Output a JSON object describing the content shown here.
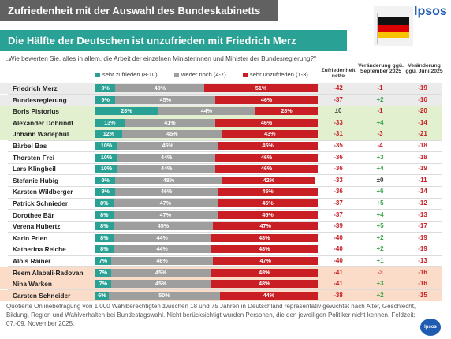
{
  "title": "Zufriedenheit mit der Auswahl des Bundeskabinetts",
  "subtitle": "Die Hälfte der Deutschen ist unzufrieden mit Friedrich Merz",
  "brand": "Ipsos",
  "question": "„Wie bewerten Sie, alles in allem, die Arbeit der einzelnen Ministerinnen und Minister der Bundesregierung?\"",
  "legend": {
    "satisfied": "sehr zufrieden (8-10)",
    "neutral": "weder noch (4-7)",
    "unsatisfied": "sehr unzufrieden (1-3)"
  },
  "columns": {
    "netto": "Zufriedenheit netto",
    "sep": "Veränderung ggü. September 2025",
    "jun": "Veränderung ggü. Juni 2025"
  },
  "colors": {
    "satisfied": "#2aa195",
    "neutral": "#9e9e9e",
    "unsatisfied": "#c81e24",
    "green_hl": "#e3f0cf",
    "peach_hl": "#fbdcc8",
    "gray_hl": "#ebebeb",
    "pos": "#3aa34a",
    "neg": "#c81e24"
  },
  "footer": "Quotierte Onlinebefragung von 1.000 Wahlberechtigten zwischen 18 und 75 Jahren in Deutschland repräsentativ gewichtet nach Alter, Geschlecht, Bildung, Region und Wahlverhalten bei Bundestagswahl. Nicht berücksichtigt wurden Personen, die den jeweiligen Politiker nicht kennen. Feldzeit: 07.-09. November 2025.",
  "chart_data": {
    "type": "bar",
    "stacked": true,
    "orientation": "horizontal",
    "categories": [
      "Friedrich Merz",
      "Bundesregierung",
      "Boris Pistorius",
      "Alexander Dobrindt",
      "Johann Wadephul",
      "Bärbel Bas",
      "Thorsten Frei",
      "Lars Klingbeil",
      "Stefanie Hubig",
      "Karsten Wildberger",
      "Patrick Schnieder",
      "Dorothee Bär",
      "Verena Hubertz",
      "Karin Prien",
      "Katherina Reiche",
      "Alois Rainer",
      "Reem Alabali-Radovan",
      "Nina Warken",
      "Carsten Schneider"
    ],
    "highlight": [
      "gray",
      "gray",
      "green",
      "green",
      "green",
      "none",
      "none",
      "none",
      "none",
      "none",
      "none",
      "none",
      "none",
      "none",
      "none",
      "none",
      "peach",
      "peach",
      "peach"
    ],
    "series": [
      {
        "name": "sehr zufrieden (8-10)",
        "values": [
          9,
          9,
          28,
          13,
          12,
          10,
          10,
          10,
          9,
          9,
          8,
          8,
          8,
          8,
          8,
          7,
          7,
          7,
          6
        ]
      },
      {
        "name": "weder noch (4-7)",
        "values": [
          40,
          45,
          44,
          41,
          45,
          45,
          44,
          44,
          48,
          46,
          47,
          47,
          45,
          44,
          44,
          46,
          45,
          45,
          50
        ]
      },
      {
        "name": "sehr unzufrieden (1-3)",
        "values": [
          51,
          46,
          28,
          46,
          43,
          45,
          46,
          46,
          42,
          45,
          45,
          45,
          47,
          48,
          48,
          47,
          48,
          48,
          44
        ]
      }
    ],
    "netto": [
      "-42",
      "-37",
      "±0",
      "-33",
      "-31",
      "-35",
      "-36",
      "-36",
      "-33",
      "-36",
      "-37",
      "-37",
      "-39",
      "-40",
      "-40",
      "-40",
      "-41",
      "-41",
      "-38"
    ],
    "change_sep": [
      "-1",
      "+2",
      "-1",
      "+4",
      "-3",
      "-4",
      "+3",
      "+4",
      "±0",
      "+6",
      "+5",
      "+4",
      "+5",
      "+2",
      "+2",
      "+1",
      "-3",
      "+3",
      "+2"
    ],
    "change_jun": [
      "-19",
      "-16",
      "-20",
      "-14",
      "-21",
      "-18",
      "-18",
      "-19",
      "-11",
      "-14",
      "-12",
      "-13",
      "-17",
      "-19",
      "-19",
      "-13",
      "-16",
      "-16",
      "-15"
    ]
  }
}
